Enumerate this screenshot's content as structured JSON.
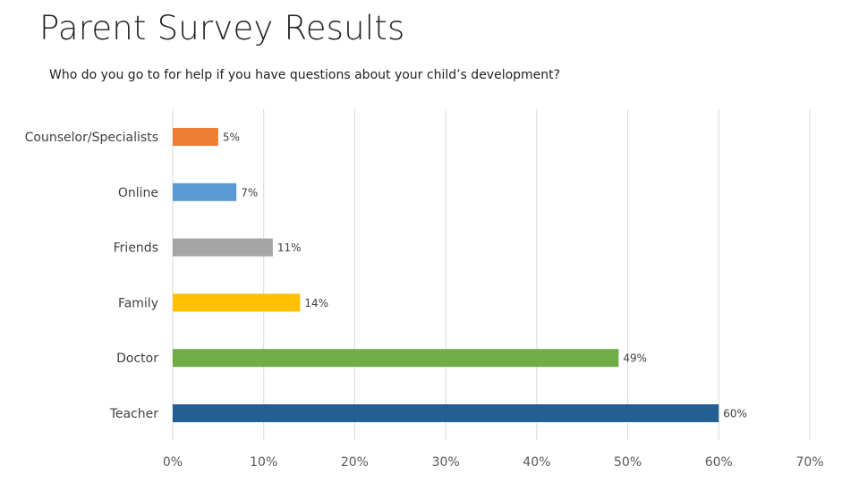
{
  "header": {
    "title": "Parent Survey Results",
    "subtitle": "Who do you go to for help if you have questions about your child’s development?"
  },
  "chart_data": {
    "type": "bar",
    "orientation": "horizontal",
    "categories": [
      "Counselor/Specialists",
      "Online",
      "Friends",
      "Family",
      "Doctor",
      "Teacher"
    ],
    "values": [
      5,
      7,
      11,
      14,
      49,
      60
    ],
    "data_labels": [
      "5%",
      "7%",
      "11%",
      "14%",
      "49%",
      "60%"
    ],
    "colors": [
      "#ED7D31",
      "#5B9BD5",
      "#A5A5A5",
      "#FFC000",
      "#70AD47",
      "#255E91"
    ],
    "x_ticks": [
      0,
      10,
      20,
      30,
      40,
      50,
      60,
      70
    ],
    "x_tick_labels": [
      "0%",
      "10%",
      "20%",
      "30%",
      "40%",
      "50%",
      "60%",
      "70%"
    ],
    "xlim": [
      0,
      70
    ],
    "grid": true,
    "legend": "none"
  }
}
